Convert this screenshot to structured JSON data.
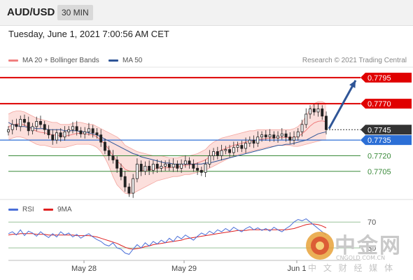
{
  "header": {
    "symbol": "AUD/USD",
    "timeframe": "30 MIN"
  },
  "datetime": "Tuesday, June 1, 2021 7:00:56 AM CET",
  "legend": {
    "bb_label": "MA 20 + Bollinger Bands",
    "bb_color": "#f08080",
    "ma50_label": "MA 50",
    "ma50_color": "#2f5597"
  },
  "copyright": "Research © 2021 Trading Central",
  "rsi_legend": {
    "rsi_label": "RSI",
    "rsi_color": "#4a6fd8",
    "ma_label": "9MA",
    "ma_color": "#e02020"
  },
  "watermark": {
    "cn": "中金网",
    "en": "CNGOLD.COM.CN",
    "sub": "中 文 财 经 媒 体"
  },
  "chart_data": [
    {
      "type": "line",
      "ylim": [
        0.768,
        0.7805
      ],
      "x_labels": [
        "May 28",
        "May 29",
        "Jun 1"
      ],
      "levels": [
        {
          "value": 0.7795,
          "label": "0.7795",
          "kind": "resistance",
          "color": "#dd0000"
        },
        {
          "value": 0.777,
          "label": "0.7770",
          "kind": "resistance",
          "color": "#dd0000"
        },
        {
          "value": 0.7745,
          "label": "0.7745",
          "kind": "current-price",
          "color": "#333333"
        },
        {
          "value": 0.7735,
          "label": "0.7735",
          "kind": "pivot",
          "color": "#2c6fd6"
        },
        {
          "value": 0.772,
          "label": "0.7720",
          "kind": "support",
          "color": "#3a8a3a"
        },
        {
          "value": 0.7705,
          "label": "0.7705",
          "kind": "support",
          "color": "#3a8a3a"
        }
      ],
      "price": [
        0.7745,
        0.775,
        0.7748,
        0.7755,
        0.7752,
        0.7744,
        0.7748,
        0.7753,
        0.775,
        0.7745,
        0.774,
        0.7735,
        0.7742,
        0.7738,
        0.7743,
        0.7745,
        0.7748,
        0.7744,
        0.7741,
        0.7743,
        0.7746,
        0.7742,
        0.774,
        0.7733,
        0.7725,
        0.772,
        0.7716,
        0.7708,
        0.77,
        0.769,
        0.7684,
        0.7698,
        0.7712,
        0.7705,
        0.771,
        0.7706,
        0.7712,
        0.7708,
        0.771,
        0.7712,
        0.7709,
        0.7712,
        0.7708,
        0.7712,
        0.7715,
        0.7712,
        0.7708,
        0.7706,
        0.7704,
        0.7712,
        0.772,
        0.7724,
        0.772,
        0.7725,
        0.7726,
        0.7723,
        0.7728,
        0.773,
        0.7727,
        0.7732,
        0.7735,
        0.7732,
        0.7738,
        0.774,
        0.7738,
        0.774,
        0.7737,
        0.7739,
        0.7741,
        0.7738,
        0.7735,
        0.7738,
        0.7743,
        0.775,
        0.776,
        0.7765,
        0.7762,
        0.7765,
        0.7758,
        0.7745
      ],
      "bb_upper": [
        0.776,
        0.7762,
        0.7763,
        0.7763,
        0.7762,
        0.776,
        0.7758,
        0.7756,
        0.7755,
        0.7754,
        0.7753,
        0.7752,
        0.7752,
        0.775,
        0.775,
        0.775,
        0.7751,
        0.7752,
        0.7752,
        0.7751,
        0.775,
        0.775,
        0.7748,
        0.7746,
        0.7744,
        0.7742,
        0.774,
        0.7738,
        0.7735,
        0.773,
        0.7728,
        0.7726,
        0.7724,
        0.7723,
        0.7722,
        0.7721,
        0.772,
        0.772,
        0.772,
        0.7719,
        0.7718,
        0.7718,
        0.7718,
        0.7719,
        0.772,
        0.772,
        0.7721,
        0.7722,
        0.7724,
        0.7726,
        0.773,
        0.7733,
        0.7735,
        0.7737,
        0.7738,
        0.7739,
        0.774,
        0.7741,
        0.7742,
        0.7743,
        0.7744,
        0.7744,
        0.7745,
        0.7745,
        0.7745,
        0.7745,
        0.7745,
        0.7745,
        0.7745,
        0.7745,
        0.7745,
        0.7746,
        0.7748,
        0.7752,
        0.7758,
        0.7765,
        0.777,
        0.7772,
        0.7772,
        0.777
      ],
      "bb_lower": [
        0.7735,
        0.7737,
        0.7738,
        0.7738,
        0.7737,
        0.7735,
        0.7733,
        0.7731,
        0.773,
        0.773,
        0.7729,
        0.7728,
        0.7728,
        0.7728,
        0.7728,
        0.7729,
        0.773,
        0.7731,
        0.7731,
        0.7731,
        0.7731,
        0.773,
        0.7728,
        0.7724,
        0.7718,
        0.771,
        0.77,
        0.7692,
        0.7688,
        0.7684,
        0.7683,
        0.7684,
        0.7686,
        0.7688,
        0.769,
        0.7692,
        0.7694,
        0.7696,
        0.7697,
        0.7698,
        0.7699,
        0.77,
        0.77,
        0.7701,
        0.7702,
        0.7702,
        0.7703,
        0.7704,
        0.7705,
        0.7706,
        0.7708,
        0.771,
        0.7712,
        0.7714,
        0.7716,
        0.7718,
        0.772,
        0.7721,
        0.7722,
        0.7723,
        0.7724,
        0.7725,
        0.7726,
        0.7727,
        0.7728,
        0.7729,
        0.7729,
        0.773,
        0.773,
        0.773,
        0.773,
        0.7729,
        0.7729,
        0.773,
        0.7731,
        0.7732,
        0.7733,
        0.7734,
        0.7735,
        0.7735
      ],
      "ma50": [
        0.7752,
        0.775,
        0.7749,
        0.7748,
        0.7748,
        0.7747,
        0.7747,
        0.7746,
        0.7746,
        0.7746,
        0.7745,
        0.7745,
        0.7745,
        0.7745,
        0.7744,
        0.7744,
        0.7744,
        0.7744,
        0.7743,
        0.7743,
        0.7742,
        0.7741,
        0.774,
        0.7738,
        0.7736,
        0.7734,
        0.7732,
        0.773,
        0.7728,
        0.7726,
        0.7724,
        0.7722,
        0.7721,
        0.7719,
        0.7718,
        0.7717,
        0.7716,
        0.7715,
        0.7714,
        0.7713,
        0.7713,
        0.7712,
        0.7712,
        0.7712,
        0.7712,
        0.7712,
        0.7712,
        0.7712,
        0.7712,
        0.7713,
        0.7713,
        0.7714,
        0.7715,
        0.7716,
        0.7717,
        0.7718,
        0.7719,
        0.772,
        0.7721,
        0.7722,
        0.7723,
        0.7724,
        0.7725,
        0.7726,
        0.7727,
        0.7728,
        0.7729,
        0.773,
        0.773,
        0.7731,
        0.7731,
        0.7732,
        0.7733,
        0.7734,
        0.7735,
        0.7737,
        0.7739,
        0.7741,
        0.7742,
        0.7743
      ],
      "forecast_arrow": {
        "from": 0.7746,
        "to": 0.7795
      }
    },
    {
      "type": "line",
      "ylim": [
        15,
        80
      ],
      "levels": [
        {
          "value": 70,
          "label": "70"
        },
        {
          "value": 30,
          "label": "30"
        }
      ],
      "rsi": [
        52,
        55,
        50,
        58,
        49,
        56,
        53,
        48,
        55,
        50,
        46,
        52,
        47,
        55,
        50,
        53,
        47,
        51,
        45,
        49,
        52,
        47,
        43,
        40,
        35,
        33,
        38,
        30,
        28,
        22,
        20,
        28,
        35,
        30,
        38,
        33,
        40,
        36,
        42,
        38,
        45,
        40,
        48,
        44,
        50,
        46,
        42,
        48,
        53,
        50,
        56,
        52,
        58,
        55,
        60,
        56,
        62,
        58,
        55,
        60,
        63,
        58,
        61,
        57,
        60,
        56,
        62,
        58,
        55,
        60,
        64,
        70,
        74,
        72,
        75,
        70,
        65,
        60,
        55,
        50
      ],
      "rsi_ma": [
        50,
        51,
        51,
        52,
        52,
        52,
        52,
        51,
        51,
        51,
        50,
        50,
        50,
        50,
        50,
        50,
        50,
        49,
        49,
        49,
        49,
        48,
        47,
        45,
        43,
        41,
        39,
        37,
        34,
        31,
        29,
        28,
        29,
        30,
        32,
        33,
        35,
        36,
        37,
        38,
        39,
        40,
        41,
        42,
        44,
        45,
        46,
        47,
        48,
        49,
        50,
        51,
        52,
        53,
        54,
        55,
        56,
        57,
        57,
        57,
        58,
        58,
        58,
        58,
        58,
        58,
        58,
        58,
        58,
        58,
        59,
        60,
        62,
        64,
        66,
        67,
        67,
        66,
        64,
        61
      ]
    }
  ]
}
